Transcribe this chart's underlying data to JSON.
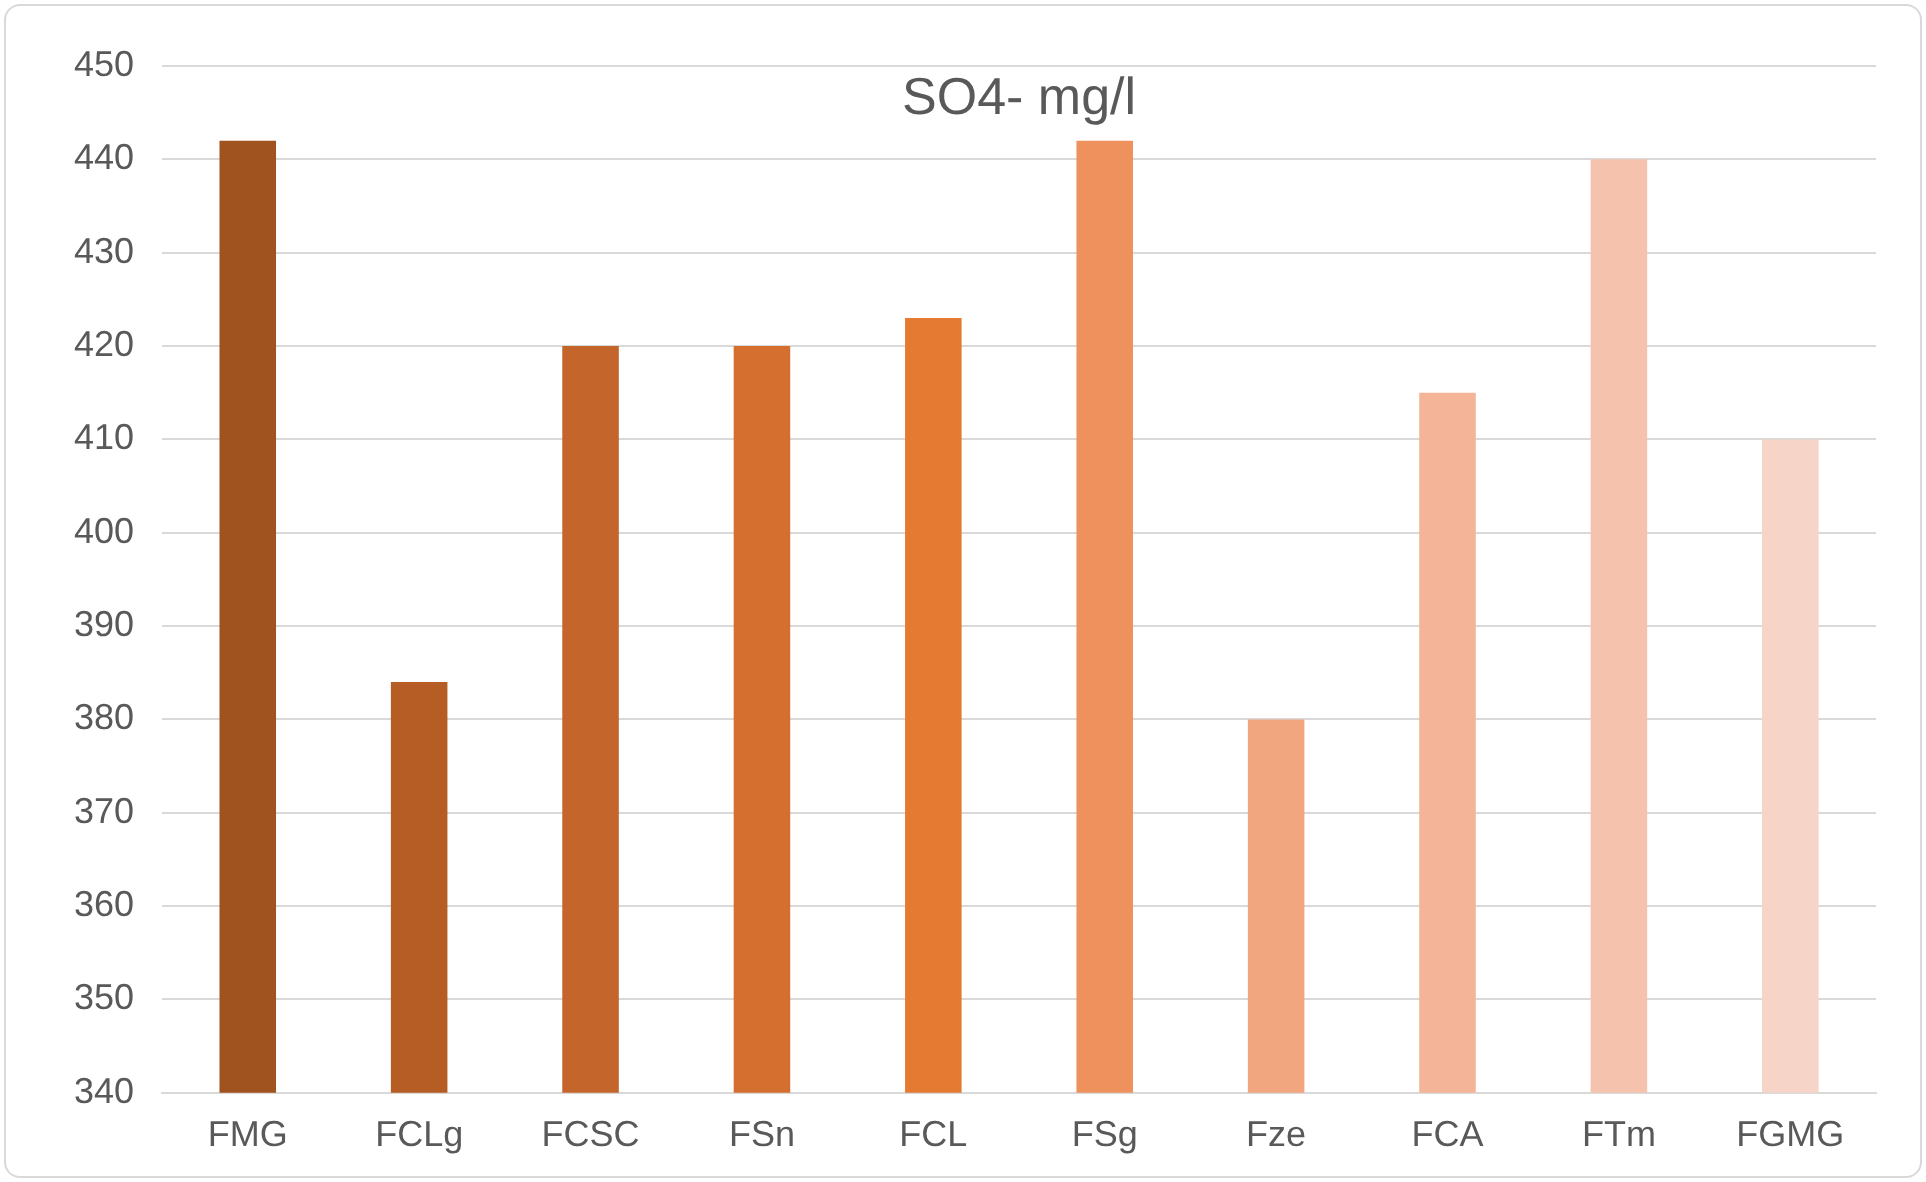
{
  "chart_data": {
    "type": "bar",
    "title": "SO4- mg/l",
    "categories": [
      "FMG",
      "FCLg",
      "FCSC",
      "FSn",
      "FCL",
      "FSg",
      "Fze",
      "FCA",
      "FTm",
      "FGMG"
    ],
    "values": [
      442,
      384,
      420,
      420,
      423,
      442,
      380,
      415,
      440,
      410
    ],
    "colors": [
      "#a0521f",
      "#b65d26",
      "#c4662b",
      "#d46f2f",
      "#e57a33",
      "#ee915c",
      "#f2a680",
      "#f4b497",
      "#f5c2ae",
      "#f6d4c7"
    ],
    "ylim": [
      340,
      450
    ],
    "yticks": [
      340,
      350,
      360,
      370,
      380,
      390,
      400,
      410,
      420,
      430,
      440,
      450
    ],
    "grid": "y",
    "legend": false
  }
}
